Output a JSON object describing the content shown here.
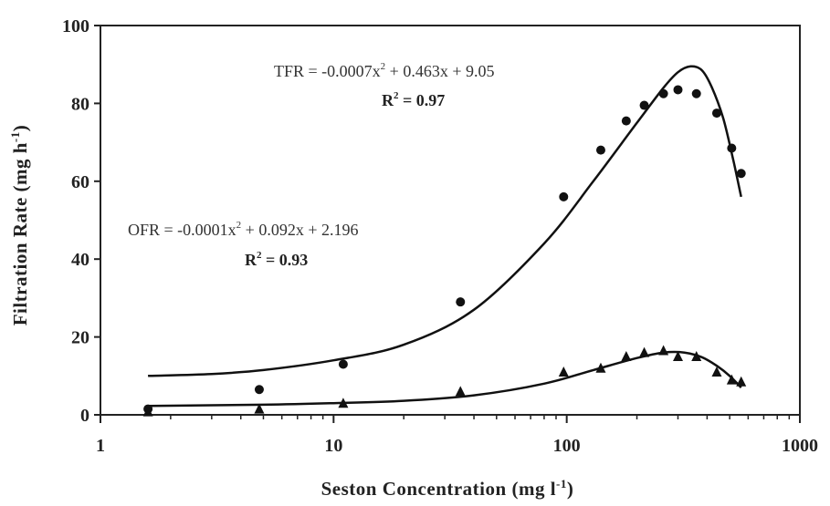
{
  "chart_data": {
    "type": "scatter",
    "xlabel": "Seston Concentration",
    "xlabel_unit_prefix": "(mg l",
    "xlabel_unit_sup": "-1",
    "xlabel_unit_suffix": ")",
    "ylabel": "Filtration Rate",
    "ylabel_unit_prefix": "(mg h",
    "ylabel_unit_sup": "-1",
    "ylabel_unit_suffix": ")",
    "xscale": "log",
    "xlim": [
      1,
      1000
    ],
    "ylim": [
      0,
      100
    ],
    "x_ticks": [
      1,
      10,
      100,
      1000
    ],
    "x_tick_labels": [
      "1",
      "10",
      "100",
      "1000"
    ],
    "y_ticks": [
      0,
      20,
      40,
      60,
      80,
      100
    ],
    "y_tick_labels": [
      "0",
      "20",
      "40",
      "60",
      "80",
      "100"
    ],
    "series": [
      {
        "name": "TFR",
        "marker": "circle",
        "x": [
          1.6,
          4.8,
          11,
          35,
          97,
          140,
          180,
          215,
          260,
          300,
          360,
          440,
          510,
          560
        ],
        "y": [
          1.5,
          6.5,
          13,
          29,
          56,
          68,
          75.5,
          79.5,
          82.5,
          83.5,
          82.5,
          77.5,
          68.5,
          62
        ],
        "equation": {
          "lhs": "TFR = -0.0007x",
          "sup": "2",
          "rhs": " + 0.463x + 9.05",
          "r2_prefix": "R",
          "r2_sup": "2",
          "r2_value": " = 0.97"
        },
        "fit": {
          "x": [
            1.6,
            3,
            5,
            10,
            20,
            40,
            80,
            130,
            200,
            260,
            300,
            340,
            380,
            420,
            470,
            520,
            560
          ],
          "y": [
            10,
            10.5,
            11.5,
            14,
            18,
            27,
            44,
            60,
            75,
            84,
            88,
            89.5,
            88.5,
            84,
            76,
            65,
            56
          ]
        }
      },
      {
        "name": "OFR",
        "marker": "triangle",
        "x": [
          1.6,
          4.8,
          11,
          35,
          97,
          140,
          180,
          215,
          260,
          300,
          360,
          440,
          510,
          560
        ],
        "y": [
          0.8,
          1.5,
          3,
          6,
          11,
          12,
          15,
          16,
          16.5,
          15,
          15,
          11,
          9,
          8.5
        ],
        "equation": {
          "lhs": "OFR = -0.0001x",
          "sup": "2",
          "rhs": " + 0.092x + 2.196",
          "r2_prefix": "R",
          "r2_sup": "2",
          "r2_value": " = 0.93"
        },
        "fit": {
          "x": [
            1.6,
            5,
            10,
            20,
            40,
            80,
            130,
            200,
            260,
            320,
            380,
            440,
            500,
            560
          ],
          "y": [
            2.3,
            2.6,
            3.0,
            3.6,
            5.0,
            8.0,
            11.5,
            14.6,
            16.0,
            16.0,
            14.8,
            12.6,
            10.0,
            7.0
          ]
        }
      }
    ]
  }
}
